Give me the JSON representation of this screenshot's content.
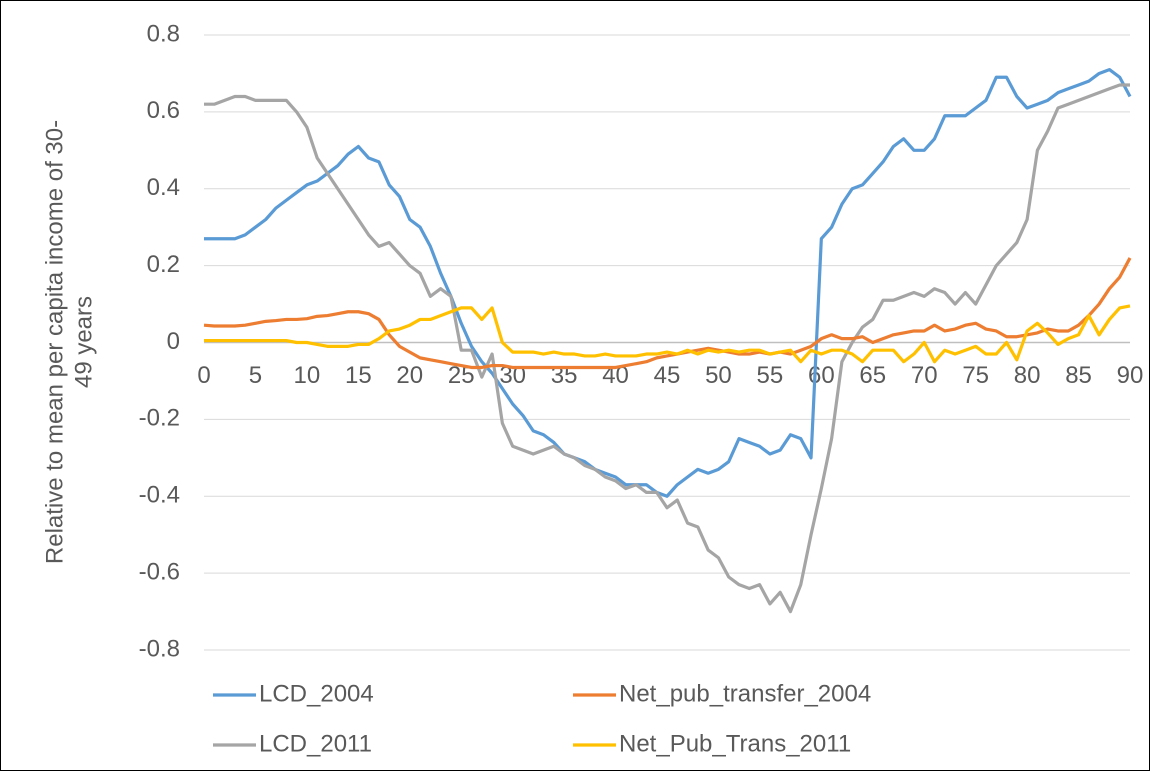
{
  "chart_data": {
    "type": "line",
    "y_label": [
      "Relative to mean per capita income of 30-",
      "49 years"
    ],
    "x": [
      0,
      1,
      2,
      3,
      4,
      5,
      6,
      7,
      8,
      9,
      10,
      11,
      12,
      13,
      14,
      15,
      16,
      17,
      18,
      19,
      20,
      21,
      22,
      23,
      24,
      25,
      26,
      27,
      28,
      29,
      30,
      31,
      32,
      33,
      34,
      35,
      36,
      37,
      38,
      39,
      40,
      41,
      42,
      43,
      44,
      45,
      46,
      47,
      48,
      49,
      50,
      51,
      52,
      53,
      54,
      55,
      56,
      57,
      58,
      59,
      60,
      61,
      62,
      63,
      64,
      65,
      66,
      67,
      68,
      69,
      70,
      71,
      72,
      73,
      74,
      75,
      76,
      77,
      78,
      79,
      80,
      81,
      82,
      83,
      84,
      85,
      86,
      87,
      88,
      89,
      90
    ],
    "xlim": [
      0,
      90
    ],
    "xticks": [
      0,
      5,
      10,
      15,
      20,
      25,
      30,
      35,
      40,
      45,
      50,
      55,
      60,
      65,
      70,
      75,
      80,
      85,
      90
    ],
    "ylim": [
      -0.8,
      0.8
    ],
    "yticks": [
      0.8,
      0.6,
      0.4,
      0.2,
      0,
      -0.2,
      -0.4,
      -0.6,
      -0.8
    ],
    "grid": true,
    "legend": "bottom",
    "series": [
      {
        "name": "LCD_2004",
        "color": "#5b9bd5",
        "values": [
          0.27,
          0.27,
          0.27,
          0.27,
          0.28,
          0.3,
          0.32,
          0.35,
          0.37,
          0.39,
          0.41,
          0.42,
          0.44,
          0.46,
          0.49,
          0.51,
          0.48,
          0.47,
          0.41,
          0.38,
          0.32,
          0.3,
          0.25,
          0.18,
          0.12,
          0.05,
          -0.01,
          -0.05,
          -0.08,
          -0.12,
          -0.16,
          -0.19,
          -0.23,
          -0.24,
          -0.26,
          -0.29,
          -0.3,
          -0.31,
          -0.33,
          -0.34,
          -0.35,
          -0.37,
          -0.37,
          -0.37,
          -0.39,
          -0.4,
          -0.37,
          -0.35,
          -0.33,
          -0.34,
          -0.33,
          -0.31,
          -0.25,
          -0.26,
          -0.27,
          -0.29,
          -0.28,
          -0.24,
          -0.25,
          -0.3,
          0.27,
          0.3,
          0.36,
          0.4,
          0.41,
          0.44,
          0.47,
          0.51,
          0.53,
          0.5,
          0.5,
          0.53,
          0.59,
          0.59,
          0.59,
          0.61,
          0.63,
          0.69,
          0.69,
          0.64,
          0.61,
          0.62,
          0.63,
          0.65,
          0.66,
          0.67,
          0.68,
          0.7,
          0.71,
          0.69,
          0.64
        ]
      },
      {
        "name": "LCD_2011",
        "color": "#a5a5a5",
        "values": [
          0.62,
          0.62,
          0.63,
          0.64,
          0.64,
          0.63,
          0.63,
          0.63,
          0.63,
          0.6,
          0.56,
          0.48,
          0.44,
          0.4,
          0.36,
          0.32,
          0.28,
          0.25,
          0.26,
          0.23,
          0.2,
          0.18,
          0.12,
          0.14,
          0.12,
          -0.02,
          -0.02,
          -0.09,
          -0.03,
          -0.21,
          -0.27,
          -0.28,
          -0.29,
          -0.28,
          -0.27,
          -0.29,
          -0.3,
          -0.32,
          -0.33,
          -0.35,
          -0.36,
          -0.38,
          -0.37,
          -0.39,
          -0.39,
          -0.43,
          -0.41,
          -0.47,
          -0.48,
          -0.54,
          -0.56,
          -0.61,
          -0.63,
          -0.64,
          -0.63,
          -0.68,
          -0.65,
          -0.7,
          -0.63,
          -0.5,
          -0.38,
          -0.25,
          -0.05,
          0.0,
          0.04,
          0.06,
          0.11,
          0.11,
          0.12,
          0.13,
          0.12,
          0.14,
          0.13,
          0.1,
          0.13,
          0.1,
          0.15,
          0.2,
          0.23,
          0.26,
          0.32,
          0.5,
          0.55,
          0.61,
          0.62,
          0.63,
          0.64,
          0.65,
          0.66,
          0.67,
          0.67
        ]
      },
      {
        "name": "Net_pub_transfer_2004",
        "color": "#ed7d31",
        "values": [
          0.045,
          0.043,
          0.043,
          0.043,
          0.045,
          0.05,
          0.055,
          0.057,
          0.06,
          0.06,
          0.062,
          0.068,
          0.07,
          0.075,
          0.08,
          0.08,
          0.075,
          0.06,
          0.02,
          -0.01,
          -0.025,
          -0.04,
          -0.045,
          -0.05,
          -0.055,
          -0.06,
          -0.065,
          -0.065,
          -0.06,
          -0.06,
          -0.065,
          -0.065,
          -0.065,
          -0.065,
          -0.065,
          -0.065,
          -0.065,
          -0.065,
          -0.065,
          -0.065,
          -0.065,
          -0.06,
          -0.055,
          -0.05,
          -0.04,
          -0.035,
          -0.03,
          -0.025,
          -0.02,
          -0.015,
          -0.02,
          -0.025,
          -0.03,
          -0.03,
          -0.025,
          -0.03,
          -0.025,
          -0.03,
          -0.02,
          -0.01,
          0.01,
          0.02,
          0.01,
          0.01,
          0.015,
          0.0,
          0.01,
          0.02,
          0.025,
          0.03,
          0.03,
          0.045,
          0.03,
          0.035,
          0.045,
          0.05,
          0.035,
          0.03,
          0.015,
          0.015,
          0.02,
          0.025,
          0.035,
          0.03,
          0.03,
          0.045,
          0.07,
          0.1,
          0.14,
          0.17,
          0.22
        ]
      },
      {
        "name": "Net_Pub_Trans_2011",
        "color": "#ffc000",
        "values": [
          0.005,
          0.005,
          0.005,
          0.005,
          0.005,
          0.005,
          0.005,
          0.005,
          0.005,
          0.0,
          0.0,
          -0.005,
          -0.01,
          -0.01,
          -0.01,
          -0.005,
          -0.005,
          0.01,
          0.03,
          0.035,
          0.045,
          0.06,
          0.06,
          0.07,
          0.08,
          0.09,
          0.09,
          0.06,
          0.09,
          0.0,
          -0.025,
          -0.025,
          -0.025,
          -0.03,
          -0.025,
          -0.03,
          -0.03,
          -0.035,
          -0.035,
          -0.03,
          -0.035,
          -0.035,
          -0.035,
          -0.03,
          -0.03,
          -0.025,
          -0.03,
          -0.02,
          -0.03,
          -0.02,
          -0.025,
          -0.02,
          -0.025,
          -0.02,
          -0.02,
          -0.03,
          -0.025,
          -0.02,
          -0.05,
          -0.02,
          -0.03,
          -0.02,
          -0.02,
          -0.03,
          -0.05,
          -0.02,
          -0.02,
          -0.02,
          -0.05,
          -0.03,
          0.0,
          -0.05,
          -0.02,
          -0.03,
          -0.02,
          -0.01,
          -0.03,
          -0.03,
          0.0,
          -0.045,
          0.03,
          0.05,
          0.025,
          -0.005,
          0.01,
          0.02,
          0.07,
          0.02,
          0.06,
          0.09,
          0.095
        ]
      }
    ]
  }
}
